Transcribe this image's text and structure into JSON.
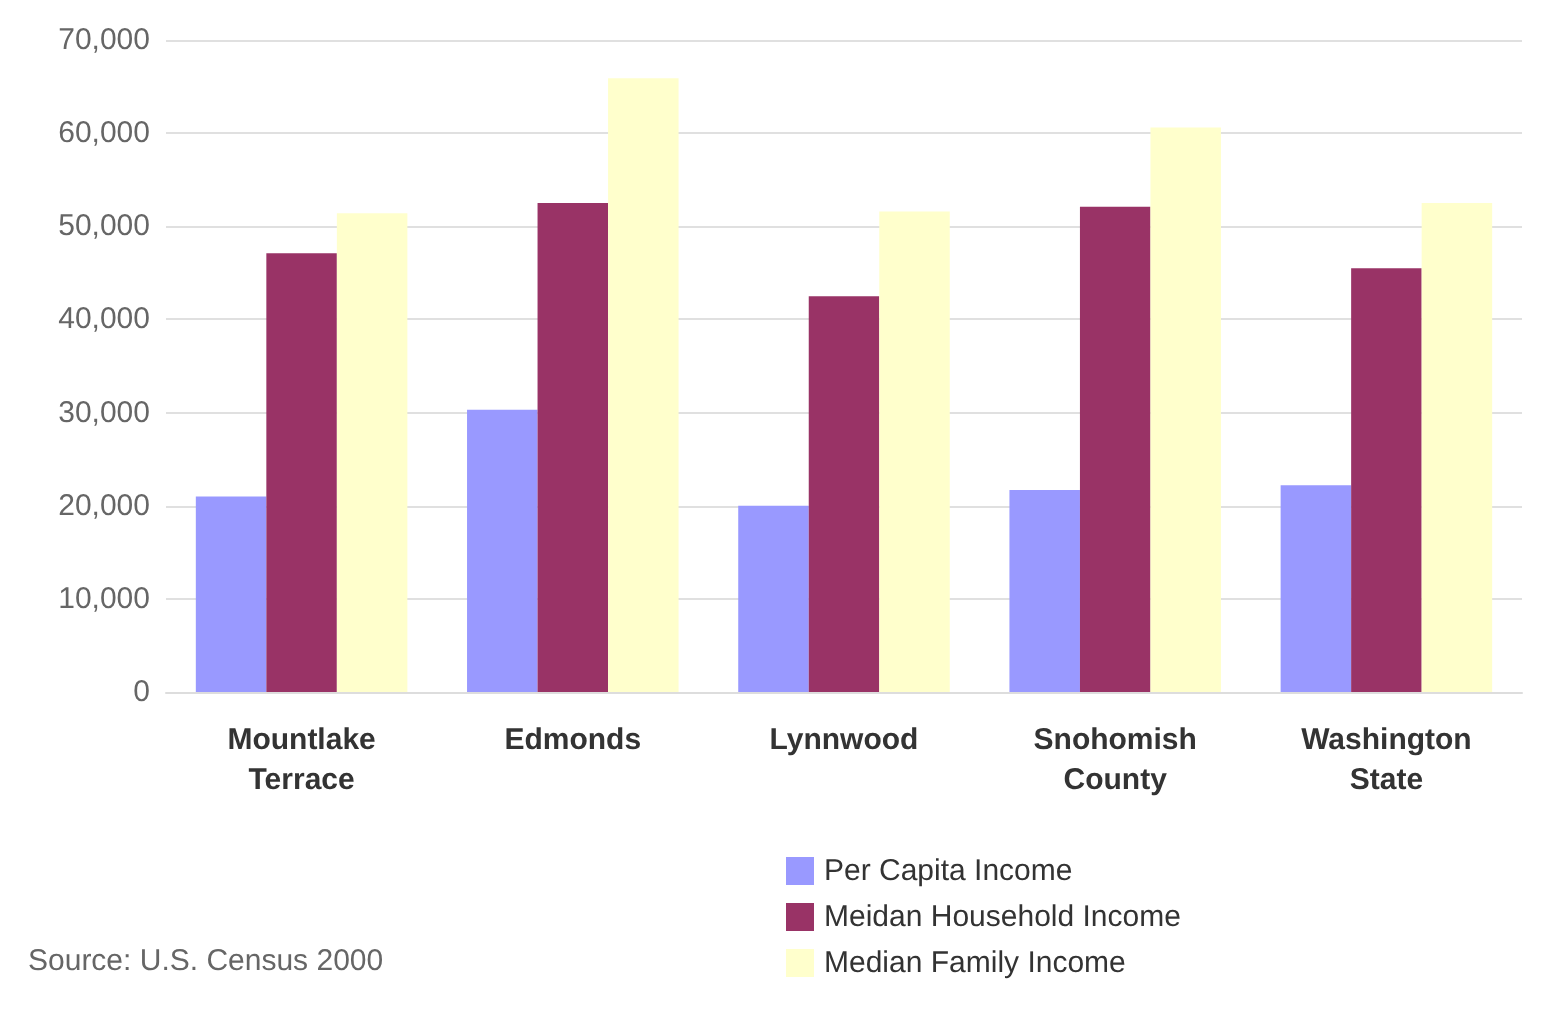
{
  "chart_data": {
    "type": "bar",
    "categories": [
      "Mountlake\nTerrace",
      "Edmonds",
      "Lynnwood",
      "Snohomish\nCounty",
      "Washington\nState"
    ],
    "series": [
      {
        "name": "Per Capita Income",
        "color": "#9999ff",
        "values": [
          21000,
          30300,
          20000,
          21700,
          22200
        ]
      },
      {
        "name": "Meidan Household Income",
        "color": "#993366",
        "values": [
          47100,
          52500,
          42500,
          52100,
          45500
        ]
      },
      {
        "name": "Median Family Income",
        "color": "#ffffcc",
        "values": [
          51400,
          65900,
          51600,
          60600,
          52500
        ]
      }
    ],
    "ylim": [
      0,
      70000
    ],
    "yticks": [
      0,
      {
        "value": 10000,
        "label": "10,000"
      },
      {
        "value": 20000,
        "label": "20,000"
      },
      {
        "value": 30000,
        "label": "30,000"
      },
      {
        "value": 40000,
        "label": "40,000"
      },
      {
        "value": 50000,
        "label": "50,000"
      },
      {
        "value": 60000,
        "label": "60,000"
      },
      {
        "value": 70000,
        "label": "70,000"
      }
    ],
    "grid": "y",
    "legend": "bottom right",
    "annotations": [
      "Source: U.S. Census 2000"
    ]
  }
}
